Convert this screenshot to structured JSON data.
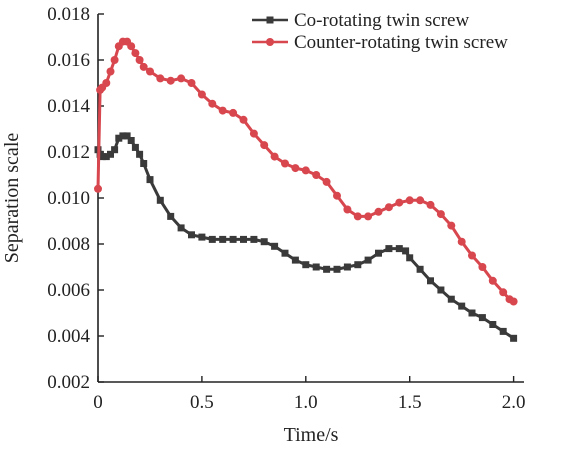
{
  "chart_data": {
    "type": "line",
    "title": "",
    "xlabel": "Time/s",
    "ylabel": "Separation scale",
    "xlim": [
      0,
      2.05
    ],
    "ylim": [
      0.002,
      0.018
    ],
    "x_ticks": [
      0,
      0.5,
      1.0,
      1.5,
      2.0
    ],
    "x_tick_labels": [
      "0",
      "0.5",
      "1.0",
      "1.5",
      "2.0"
    ],
    "y_ticks": [
      0.002,
      0.004,
      0.006,
      0.008,
      0.01,
      0.012,
      0.014,
      0.016,
      0.018
    ],
    "y_tick_labels": [
      "0.002",
      "0.004",
      "0.006",
      "0.008",
      "0.010",
      "0.012",
      "0.014",
      "0.016",
      "0.018"
    ],
    "grid": false,
    "legend_position": "top-right",
    "series": [
      {
        "name": "Co-rotating twin screw",
        "color": "#3a3a3a",
        "marker": "square",
        "x": [
          0.0,
          0.01,
          0.02,
          0.04,
          0.06,
          0.08,
          0.1,
          0.12,
          0.14,
          0.16,
          0.18,
          0.2,
          0.22,
          0.25,
          0.3,
          0.35,
          0.4,
          0.45,
          0.5,
          0.55,
          0.6,
          0.65,
          0.7,
          0.75,
          0.8,
          0.85,
          0.9,
          0.95,
          1.0,
          1.05,
          1.1,
          1.15,
          1.2,
          1.25,
          1.3,
          1.35,
          1.4,
          1.45,
          1.48,
          1.5,
          1.55,
          1.6,
          1.65,
          1.7,
          1.75,
          1.8,
          1.85,
          1.9,
          1.95,
          2.0
        ],
        "y": [
          0.0121,
          0.0119,
          0.0118,
          0.0118,
          0.0119,
          0.0121,
          0.0126,
          0.0127,
          0.0127,
          0.0125,
          0.0122,
          0.0119,
          0.0115,
          0.0108,
          0.0099,
          0.0092,
          0.0087,
          0.0084,
          0.0083,
          0.0082,
          0.0082,
          0.0082,
          0.0082,
          0.0082,
          0.0081,
          0.0079,
          0.0076,
          0.0073,
          0.0071,
          0.007,
          0.0069,
          0.0069,
          0.007,
          0.0071,
          0.0073,
          0.0076,
          0.0078,
          0.0078,
          0.0077,
          0.0074,
          0.0069,
          0.0064,
          0.006,
          0.0056,
          0.0053,
          0.005,
          0.0048,
          0.0045,
          0.0042,
          0.0039
        ]
      },
      {
        "name": "Counter-rotating twin screw",
        "color": "#d8464e",
        "marker": "circle",
        "x": [
          0.0,
          0.01,
          0.02,
          0.04,
          0.06,
          0.08,
          0.1,
          0.12,
          0.14,
          0.16,
          0.18,
          0.2,
          0.22,
          0.25,
          0.3,
          0.35,
          0.4,
          0.45,
          0.5,
          0.55,
          0.6,
          0.65,
          0.7,
          0.75,
          0.8,
          0.85,
          0.9,
          0.95,
          1.0,
          1.05,
          1.1,
          1.15,
          1.2,
          1.25,
          1.3,
          1.35,
          1.4,
          1.45,
          1.5,
          1.55,
          1.6,
          1.65,
          1.7,
          1.75,
          1.8,
          1.85,
          1.9,
          1.95,
          1.98,
          2.0
        ],
        "y": [
          0.0104,
          0.0147,
          0.0148,
          0.015,
          0.0155,
          0.016,
          0.0166,
          0.0168,
          0.0168,
          0.0166,
          0.0163,
          0.016,
          0.0157,
          0.0155,
          0.0152,
          0.0151,
          0.0152,
          0.015,
          0.0145,
          0.0141,
          0.0138,
          0.0137,
          0.0134,
          0.0128,
          0.0123,
          0.0118,
          0.0115,
          0.0113,
          0.0112,
          0.011,
          0.0107,
          0.0101,
          0.0095,
          0.0092,
          0.0092,
          0.0094,
          0.0096,
          0.0098,
          0.0099,
          0.0099,
          0.0097,
          0.0093,
          0.0088,
          0.0081,
          0.0075,
          0.007,
          0.0064,
          0.0059,
          0.0056,
          0.0055
        ]
      }
    ]
  }
}
